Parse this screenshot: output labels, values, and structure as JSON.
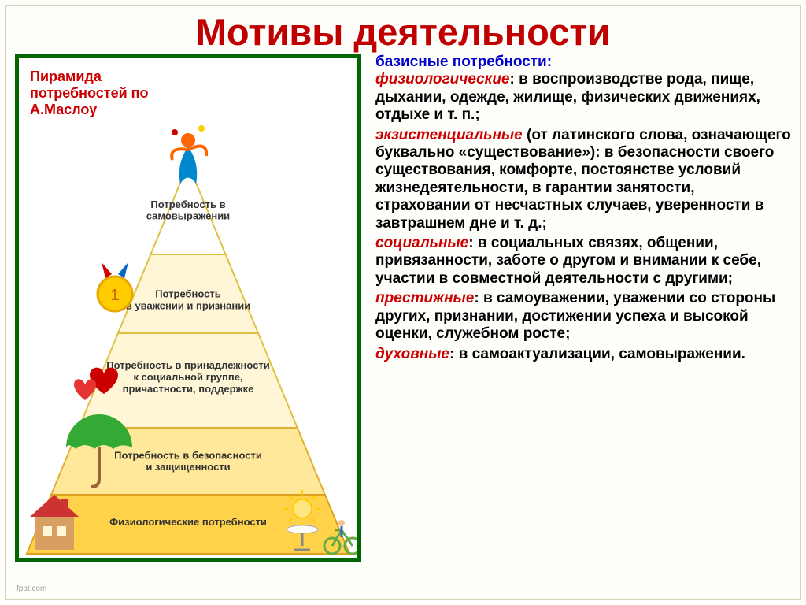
{
  "title": {
    "text": "Мотивы деятельности",
    "fontsize": 47,
    "color": "#c00000"
  },
  "pyramid": {
    "caption": "Пирамида потребностей по А.Маслоу",
    "caption_color": "#cc0000",
    "caption_fontsize": 18,
    "border_color": "#006600",
    "levels": [
      {
        "label": "Потребность в\nсамовыражении",
        "fill": "#ffffff",
        "stroke": "#e0c040"
      },
      {
        "label": "Потребность\nв уважении и признании",
        "fill": "#fff6d8",
        "stroke": "#e0c040"
      },
      {
        "label": "Потребность в принадлежности\nк социальной группе,\nпричастности, поддержке",
        "fill": "#fff6d8",
        "stroke": "#e0c040"
      },
      {
        "label": "Потребность в безопасности\nи защищенности",
        "fill": "#ffe89a",
        "stroke": "#e0b030"
      },
      {
        "label": "Физиологические потребности",
        "fill": "#ffd24a",
        "stroke": "#e0a020"
      }
    ],
    "label_color": "#333333",
    "label_fontsize": 13,
    "icons": {
      "top_figure": "#ff6600",
      "medal": "#ffcc00",
      "heart": "#cc0000",
      "umbrella": "#33aa33",
      "house_roof": "#cc3333",
      "house_wall": "#d8a060",
      "sun": "#ffcc00",
      "bike": "#66aa44"
    }
  },
  "right": {
    "header": "базисные потребности:",
    "header_color": "#0000cc",
    "fontsize": 19,
    "needs": [
      {
        "term": "физиологические",
        "sep": ": ",
        "text": "в воспроизводстве рода, пище, дыхании, одежде, жилище, физических движениях, отдыхе и т. п.;"
      },
      {
        "term": "экзистенциальные",
        "sep": " ",
        "text": "(от латинского слова, означающего буквально «существование»): в безопасности своего существования, комфорте, постоянстве условий жизнедеятельности, в гарантии занятости, страховании от несчастных случаев, уверенности в завтрашнем дне и т. д.;"
      },
      {
        "term": "социальные",
        "sep": ": ",
        "text": "в социальных связях, общении, привязанности, заботе о другом и внимании к себе, участии в совместной деятельности с другими;"
      },
      {
        "term": "престижные",
        "sep": ": ",
        "text": "в самоуважении, уважении со стороны других, признании, достижении успеха и высокой оценки, служебном росте;"
      },
      {
        "term": "духовные",
        "sep": ": ",
        "text": "в самоактуализации, самовыражении."
      }
    ]
  },
  "footer": "fppt.com"
}
